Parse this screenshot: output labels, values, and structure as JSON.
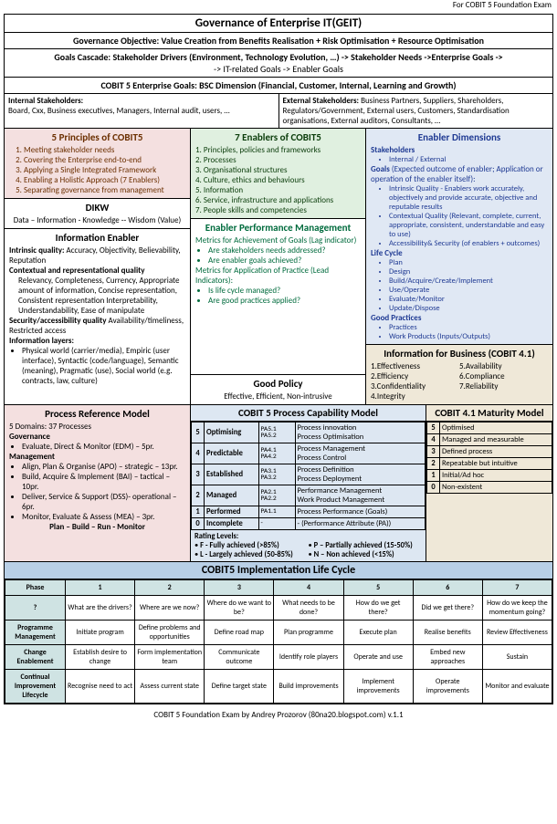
{
  "header_note": "For COBIT 5 Foundation Exam",
  "title": "Governance of Enterprise IT(GEIT)",
  "gov_obj": "Governance Objective: Value Creation from Benefits Realisation + Risk Optimisation + Resource Optimisation",
  "cascade": "Goals Cascade: Stakeholder Drivers (Environment, Technology Evolution, …) -> Stakeholder Needs ->Enterprise Goals  ->",
  "cascade2": "-> IT-related Goals -> Enabler Goals",
  "ent_goals": "COBIT 5 Enterprise Goals: BSC Dimension (Financial, Customer, Internal, Learning and Growth)",
  "int_stake_h": "Internal Stakeholders:",
  "int_stake": "Board, Cxx, Business executives, Managers, Internal audit, users, …",
  "ext_stake_h": "External Stakeholders: ",
  "ext_stake": "Business Partners, Suppliers, Shareholders, Regulators/Government, External users, Customers, Standardisation organisations, External auditors, Consultants, …",
  "p5_title": "5 Principles of COBIT5",
  "p5": [
    "Meeting stakeholder needs",
    "Covering the Enterprise end-to-end",
    "Applying a Single Integrated Framework",
    "Enabling a Holistic Approach (7 Enablers)",
    "Separating governance from management"
  ],
  "dikw_title": "DIKW",
  "dikw": "Data – Information - Knowledge -- Wisdom (Value)",
  "info_en_title": "Information Enabler",
  "info_en_intrinsic_h": "Intrinsic quality:",
  "info_en_intrinsic": " Accuracy, Objectivity, Believability, Reputation",
  "info_en_ctx_h": "Contextual and representational quality",
  "info_en_ctx": "Relevancy, Completeness, Currency, Appropriate amount of information, Concise representation, Consistent representation Interpretability, Understandability, Ease of manipulate",
  "info_en_sec_h": "Security/accessibility quality",
  "info_en_sec": " Availability/timeliness, Restricted access",
  "info_layers_h": "Information layers:",
  "info_layers": "Physical world (carrier/media), Empiric (user interface), Syntactic (code/language), Semantic (meaning), Pragmatic (use), Social world (e.g. contracts, law, culture)",
  "e7_title": "7 Enablers of COBIT5",
  "e7": [
    "Principles, policies and frameworks",
    "Processes",
    "Organisational structures",
    "Culture, ethics and behaviours",
    "Information",
    "Service, infrastructure and applications",
    "People skills and competencies"
  ],
  "epm_title": "Enabler Performance Management",
  "epm_lag_h": "Metrics for Achievement of Goals (Lag indicator)",
  "epm_lag1": "Are stakeholders needs addressed?",
  "epm_lag2": "Are enabler goals achieved?",
  "epm_lead_h": "Metrics for Application of Practice (Lead Indicators):",
  "epm_lead1": "Is life cycle managed?",
  "epm_lead2": "Are good practices applied?",
  "good_policy_title": "Good Policy",
  "good_policy": "Effective, Efficient, Non-intrusive",
  "ed_title": "Enabler Dimensions",
  "ed_stake_h": "Stakeholders",
  "ed_stake": "Internal / External",
  "ed_goals_h": "Goals",
  "ed_goals_intro": " (Expected outcome of enabler; Application or operation of the enabler itself):",
  "ed_g1": "Intrinsic Quality - Enablers work accurately, objectively and provide accurate, objective and reputable results",
  "ed_g2": "Contextual Quality (Relevant, complete, current, appropriate, consistent, understandable and easy to use)",
  "ed_g3": "Accessibility& Security (of enablers + outcomes)",
  "ed_lc_h": "Life Cycle",
  "ed_lc": [
    "Plan",
    "Design",
    "Build/Acquire/Create/Implement",
    "Use/Operate",
    "Evaluate/Monitor",
    "Update/Dispose"
  ],
  "ed_gp_h": "Good Practices",
  "ed_gp1": "Practices",
  "ed_gp2": "Work Products (Inputs/Outputs)",
  "infobiz_title": "Information for Business (COBIT 4.1)",
  "infobiz_l": [
    "1.Effectiveness",
    "2.Efficiency",
    "3.Confidentiality",
    "4.Integrity"
  ],
  "infobiz_r": [
    "5.Availability",
    "6.Compliance",
    "7.Reliability"
  ],
  "prm_title": "Process Reference Model",
  "prm_sub": "5 Domains: 37 Processes",
  "prm_gov_h": "Governance",
  "prm_gov": "Evaluate, Direct & Monitor (EDM) – 5pr.",
  "prm_mgmt_h": "Management",
  "prm_m1": "Align, Plan & Organise (APO) – strategic – 13pr.",
  "prm_m2": "Build, Acquire & Implement (BAI) – tactical – 10pr.",
  "prm_m3": "Deliver, Service & Support (DSS)- operational – 6pr.",
  "prm_m4": "Monitor, Evaluate & Assess (MEA) – 3pr.",
  "prm_pbrm": "Plan – Build – Run - Monitor",
  "pcm_title": "COBIT 5 Process Capability Model",
  "levels": [
    {
      "n": "5",
      "name": "Optimising",
      "pa": "PA5.1 PA5.2",
      "desc": "Process innovation\nProcess Optimisation"
    },
    {
      "n": "4",
      "name": "Predictable",
      "pa": "PA4.1 PA4.2",
      "desc": "Process Management\nProcess Control"
    },
    {
      "n": "3",
      "name": "Established",
      "pa": "PA3.1 PA3.2",
      "desc": "Process Definition\nProcess Deployment"
    },
    {
      "n": "2",
      "name": "Managed",
      "pa": "PA2.1 PA2.2",
      "desc": "Performance Management\nWork Product Management"
    },
    {
      "n": "1",
      "name": "Performed",
      "pa": "PA1.1",
      "desc": "Process Performance (Goals)"
    },
    {
      "n": "0",
      "name": "Incomplete",
      "pa": "-",
      "desc": "- (Performance Attribute (PA))"
    }
  ],
  "rating_h": "Rating Levels:",
  "rating_f": "F - Fully achieved (>85%)",
  "rating_l": "L - Largely achieved (50-85%)",
  "rating_p": "P – Partially achieved (15-50%)",
  "rating_n": "N – Non achieved (<15%)",
  "mm_title": "COBIT 4.1 Maturity Model",
  "mm": [
    {
      "n": "5",
      "name": "Optimised"
    },
    {
      "n": "4",
      "name": "Managed and measurable"
    },
    {
      "n": "3",
      "name": "Defined process"
    },
    {
      "n": "2",
      "name": "Repeatable but intuitive"
    },
    {
      "n": "1",
      "name": "Initial/Ad hoc"
    },
    {
      "n": "0",
      "name": "Non-existent"
    }
  ],
  "ilc_title": "COBIT5 Implementation Life Cycle",
  "ilc_head": [
    "Phase",
    "1",
    "2",
    "3",
    "4",
    "5",
    "6",
    "7"
  ],
  "ilc_rows": [
    {
      "h": "?",
      "c": [
        "What are the drivers?",
        "Where are we now?",
        "Where do we want to be?",
        "What needs to be done?",
        "How do we get there?",
        "Did we get there?",
        "How do we keep the momentum going?"
      ]
    },
    {
      "h": "Programme Management",
      "c": [
        "Initiate program",
        "Define problems and opportunities",
        "Define road map",
        "Plan programme",
        "Execute plan",
        "Realise benefits",
        "Review Effectiveness"
      ]
    },
    {
      "h": "Change Enablement",
      "c": [
        "Establish desire to change",
        "Form implementation team",
        "Communicate outcome",
        "Identify role players",
        "Operate and use",
        "Embed new approaches",
        "Sustain"
      ]
    },
    {
      "h": "Continual Improvement Lifecycle",
      "c": [
        "Recognise need to act",
        "Assess current state",
        "Define target state",
        "Build improvements",
        "Implement improvements",
        "Operate improvements",
        "Monitor and evaluate"
      ]
    }
  ],
  "footer": "COBIT 5 Foundation Exam by Andrey Prozorov (80na20.blogspot.com) v.1.1"
}
